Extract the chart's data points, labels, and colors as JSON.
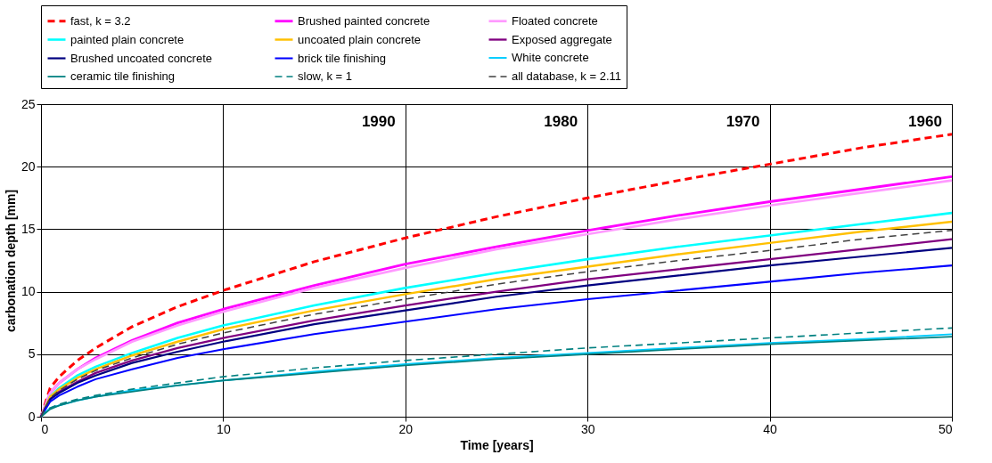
{
  "chart_data": {
    "type": "line",
    "xlabel": "Time [years]",
    "ylabel": "carbonation depth [mm]",
    "x": [
      0,
      0.5,
      1,
      2,
      3,
      5,
      7.5,
      10,
      15,
      20,
      25,
      30,
      35,
      40,
      45,
      50
    ],
    "xlim": [
      0,
      50
    ],
    "xticks": [
      0,
      10,
      20,
      30,
      40,
      50
    ],
    "ylim": [
      0,
      25
    ],
    "yticks": [
      0,
      5,
      10,
      15,
      20,
      25
    ],
    "grid": true,
    "legend": "top",
    "marker": "none",
    "series": [
      {
        "name": "fast, k = 3.2",
        "color": "#ff0000",
        "line_style": "dashed",
        "values": [
          0,
          2.3,
          3.2,
          4.5,
          5.5,
          7.2,
          8.8,
          10.1,
          12.4,
          14.3,
          16.0,
          17.5,
          18.9,
          20.2,
          21.5,
          22.6
        ]
      },
      {
        "name": "Brushed painted concrete",
        "color": "#ff00ff",
        "line_style": "solid",
        "values": [
          0,
          1.9,
          2.7,
          3.8,
          4.7,
          6.1,
          7.5,
          8.6,
          10.5,
          12.2,
          13.6,
          14.9,
          16.1,
          17.2,
          18.2,
          19.2
        ]
      },
      {
        "name": "Floated concrete",
        "color": "#ff99ff",
        "line_style": "solid",
        "values": [
          0,
          1.9,
          2.7,
          3.8,
          4.6,
          6.0,
          7.3,
          8.4,
          10.3,
          11.9,
          13.4,
          14.6,
          15.8,
          16.9,
          17.9,
          18.9
        ]
      },
      {
        "name": "painted plain concrete",
        "color": "#00ffff",
        "line_style": "solid",
        "values": [
          0,
          1.6,
          2.3,
          3.3,
          4.0,
          5.1,
          6.3,
          7.3,
          8.9,
          10.3,
          11.5,
          12.6,
          13.6,
          14.5,
          15.4,
          16.3
        ]
      },
      {
        "name": "uncoated plain concrete",
        "color": "#ffc000",
        "line_style": "solid",
        "values": [
          0,
          1.6,
          2.2,
          3.1,
          3.8,
          4.9,
          6.0,
          7.0,
          8.5,
          9.8,
          11.0,
          12.0,
          13.0,
          13.9,
          14.8,
          15.6
        ]
      },
      {
        "name": "Exposed aggregate",
        "color": "#800080",
        "line_style": "solid",
        "values": [
          0,
          1.4,
          2.0,
          2.8,
          3.5,
          4.5,
          5.5,
          6.3,
          7.7,
          8.9,
          10.0,
          11.0,
          11.8,
          12.6,
          13.4,
          14.2
        ]
      },
      {
        "name": "Brushed uncoated  concrete",
        "color": "#000080",
        "line_style": "solid",
        "values": [
          0,
          1.4,
          1.9,
          2.7,
          3.3,
          4.3,
          5.2,
          6.0,
          7.4,
          8.5,
          9.6,
          10.5,
          11.3,
          12.1,
          12.8,
          13.5
        ]
      },
      {
        "name": "brick tile finishing",
        "color": "#0000ff",
        "line_style": "solid",
        "values": [
          0,
          1.2,
          1.7,
          2.4,
          3.0,
          3.8,
          4.7,
          5.4,
          6.6,
          7.6,
          8.6,
          9.4,
          10.1,
          10.8,
          11.5,
          12.1
        ]
      },
      {
        "name": "White concrete",
        "color": "#00ccff",
        "line_style": "solid",
        "values": [
          0,
          0.7,
          0.9,
          1.3,
          1.6,
          2.1,
          2.5,
          2.9,
          3.6,
          4.2,
          4.7,
          5.1,
          5.5,
          5.9,
          6.2,
          6.6
        ]
      },
      {
        "name": "ceramic tile finishing",
        "color": "#008080",
        "line_style": "solid",
        "values": [
          0,
          0.6,
          0.9,
          1.3,
          1.6,
          2.0,
          2.5,
          2.9,
          3.5,
          4.1,
          4.6,
          5.0,
          5.4,
          5.8,
          6.1,
          6.4
        ]
      },
      {
        "name": "slow, k = 1",
        "color": "#008080",
        "line_style": "dashed",
        "values": [
          0,
          0.7,
          1.0,
          1.4,
          1.7,
          2.2,
          2.7,
          3.2,
          3.9,
          4.5,
          5.0,
          5.5,
          5.9,
          6.3,
          6.7,
          7.1
        ]
      },
      {
        "name": "all database, k = 2.11",
        "color": "#404040",
        "line_style": "dashed",
        "values": [
          0,
          1.5,
          2.1,
          3.0,
          3.7,
          4.7,
          5.8,
          6.7,
          8.2,
          9.4,
          10.6,
          11.6,
          12.5,
          13.3,
          14.2,
          14.9
        ]
      }
    ],
    "annotations": [
      "1990",
      "1980",
      "1970",
      "1960"
    ]
  }
}
